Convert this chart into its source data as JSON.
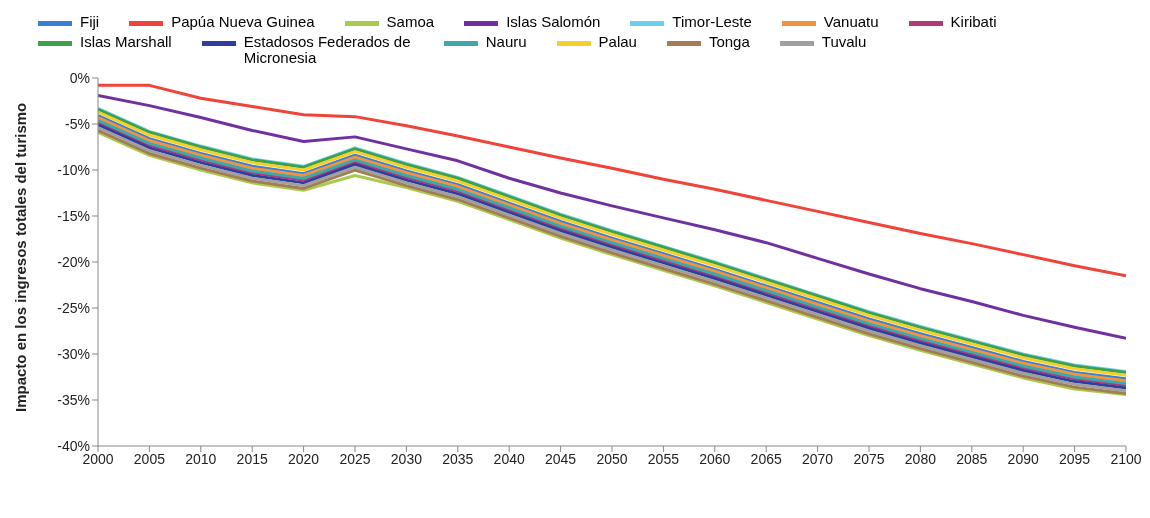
{
  "chart_data": {
    "type": "line",
    "ylabel": "Impacto en los ingresos totales del turismo",
    "x": [
      2000,
      2005,
      2010,
      2015,
      2020,
      2025,
      2030,
      2035,
      2040,
      2045,
      2050,
      2055,
      2060,
      2065,
      2070,
      2075,
      2080,
      2085,
      2090,
      2095,
      2100
    ],
    "xlim": [
      2000,
      2100
    ],
    "xticks": [
      2000,
      2005,
      2010,
      2015,
      2020,
      2025,
      2030,
      2035,
      2040,
      2045,
      2050,
      2055,
      2060,
      2065,
      2070,
      2075,
      2080,
      2085,
      2090,
      2095,
      2100
    ],
    "ylim": [
      -40,
      0
    ],
    "yticks": [
      {
        "value": 0,
        "label": "0%"
      },
      {
        "value": -5,
        "label": "-5%"
      },
      {
        "value": -10,
        "label": "-10%"
      },
      {
        "value": -15,
        "label": "-15%"
      },
      {
        "value": -20,
        "label": "-20%"
      },
      {
        "value": -25,
        "label": "-25%"
      },
      {
        "value": -30,
        "label": "-30%"
      },
      {
        "value": -35,
        "label": "-35%"
      },
      {
        "value": -40,
        "label": "-40%"
      }
    ],
    "legend": "top",
    "marker": "none",
    "line_style": "solid",
    "series": [
      {
        "name": "Fiji",
        "color": "#3a7fd5",
        "values": [
          -4.1,
          -6.6,
          -8.2,
          -9.6,
          -10.4,
          -8.4,
          -10.1,
          -11.6,
          -13.6,
          -15.6,
          -17.4,
          -19.1,
          -20.8,
          -22.6,
          -24.4,
          -26.2,
          -27.8,
          -29.3,
          -30.8,
          -32.0,
          -32.7
        ]
      },
      {
        "name": "Papúa Nueva Guinea",
        "color": "#f0433a",
        "values": [
          -0.8,
          -0.8,
          -2.2,
          -3.1,
          -4.0,
          -4.2,
          -5.2,
          -6.3,
          -7.5,
          -8.7,
          -9.8,
          -11.0,
          -12.1,
          -13.3,
          -14.5,
          -15.7,
          -16.9,
          -18.0,
          -19.2,
          -20.4,
          -21.5
        ]
      },
      {
        "name": "Samoa",
        "color": "#a9c94f",
        "values": [
          -5.9,
          -8.4,
          -10.0,
          -11.4,
          -12.2,
          -10.6,
          -11.9,
          -13.4,
          -15.4,
          -17.4,
          -19.2,
          -20.9,
          -22.6,
          -24.4,
          -26.2,
          -28.0,
          -29.6,
          -31.1,
          -32.6,
          -33.8,
          -34.4
        ]
      },
      {
        "name": "Islas Salomón",
        "color": "#7030a0",
        "values": [
          -1.9,
          -3.0,
          -4.3,
          -5.7,
          -6.9,
          -6.4,
          -7.7,
          -9.0,
          -10.9,
          -12.5,
          -13.9,
          -15.2,
          -16.5,
          -17.9,
          -19.6,
          -21.3,
          -22.9,
          -24.3,
          -25.8,
          -27.1,
          -28.3
        ]
      },
      {
        "name": "Timor-Leste",
        "color": "#6dcff0",
        "values": [
          -3.3,
          -5.8,
          -7.4,
          -8.8,
          -9.6,
          -7.6,
          -9.3,
          -10.8,
          -12.8,
          -14.8,
          -16.6,
          -18.3,
          -20.0,
          -21.8,
          -23.6,
          -25.4,
          -27.0,
          -28.5,
          -30.0,
          -31.2,
          -31.9
        ]
      },
      {
        "name": "Vanuatu",
        "color": "#f5923e",
        "values": [
          -4.3,
          -6.8,
          -8.4,
          -9.8,
          -10.6,
          -8.6,
          -10.3,
          -11.8,
          -13.8,
          -15.8,
          -17.6,
          -19.3,
          -21.0,
          -22.8,
          -24.6,
          -26.4,
          -28.0,
          -29.5,
          -31.0,
          -32.2,
          -32.9
        ]
      },
      {
        "name": "Kiribati",
        "color": "#b03a7a",
        "values": [
          -4.8,
          -7.3,
          -8.9,
          -10.3,
          -11.1,
          -9.1,
          -10.8,
          -12.3,
          -14.3,
          -16.3,
          -18.1,
          -19.8,
          -21.5,
          -23.3,
          -25.1,
          -26.9,
          -28.5,
          -30.0,
          -31.5,
          -32.7,
          -33.4
        ]
      },
      {
        "name": "Islas Marshall",
        "color": "#3f9f4a",
        "values": [
          -3.4,
          -5.9,
          -7.5,
          -8.9,
          -9.7,
          -7.7,
          -9.4,
          -10.9,
          -12.9,
          -14.9,
          -16.7,
          -18.4,
          -20.1,
          -21.9,
          -23.7,
          -25.5,
          -27.1,
          -28.6,
          -30.1,
          -31.3,
          -32.0
        ]
      },
      {
        "name": "Estadosos Federados de Micronesia",
        "color": "#2e3d9e",
        "values": [
          -5.1,
          -7.6,
          -9.2,
          -10.6,
          -11.4,
          -9.4,
          -11.1,
          -12.6,
          -14.6,
          -16.6,
          -18.4,
          -20.1,
          -21.8,
          -23.6,
          -25.4,
          -27.2,
          -28.8,
          -30.3,
          -31.8,
          -33.0,
          -33.7
        ]
      },
      {
        "name": "Nauru",
        "color": "#40a8a8",
        "values": [
          -4.6,
          -7.1,
          -8.7,
          -10.1,
          -10.9,
          -8.9,
          -10.6,
          -12.1,
          -14.1,
          -16.1,
          -17.9,
          -19.6,
          -21.3,
          -23.1,
          -24.9,
          -26.7,
          -28.3,
          -29.8,
          -31.3,
          -32.5,
          -33.2
        ]
      },
      {
        "name": "Palau",
        "color": "#f5d02a",
        "values": [
          -3.7,
          -6.2,
          -7.8,
          -9.2,
          -10.0,
          -8.0,
          -9.7,
          -11.2,
          -13.2,
          -15.2,
          -17.0,
          -18.7,
          -20.4,
          -22.2,
          -24.0,
          -25.8,
          -27.4,
          -28.9,
          -30.4,
          -31.6,
          -32.3
        ]
      },
      {
        "name": "Tonga",
        "color": "#a57c52",
        "values": [
          -5.7,
          -8.2,
          -9.8,
          -11.2,
          -12.0,
          -10.0,
          -11.7,
          -13.2,
          -15.2,
          -17.2,
          -19.0,
          -20.7,
          -22.4,
          -24.2,
          -26.0,
          -27.8,
          -29.4,
          -30.9,
          -32.4,
          -33.6,
          -34.3
        ]
      },
      {
        "name": "Tuvalu",
        "color": "#a0a0a0",
        "values": [
          -5.4,
          -7.9,
          -9.5,
          -10.9,
          -11.7,
          -9.7,
          -11.4,
          -12.9,
          -14.9,
          -16.9,
          -18.7,
          -20.4,
          -22.1,
          -23.9,
          -25.7,
          -27.5,
          -29.1,
          -30.6,
          -32.1,
          -33.3,
          -34.0
        ]
      }
    ]
  }
}
